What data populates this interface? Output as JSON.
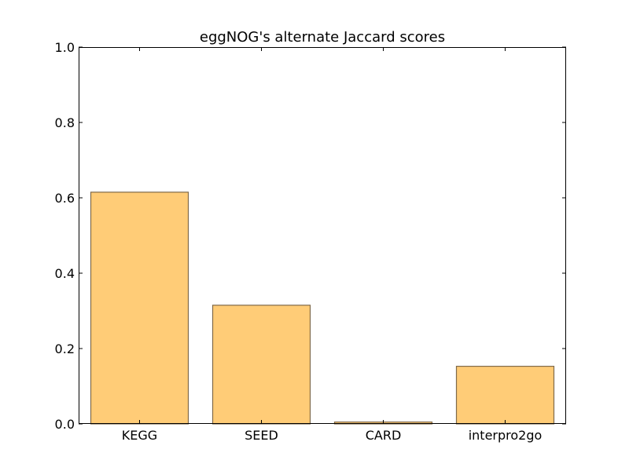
{
  "chart_data": {
    "type": "bar",
    "title": "eggNOG's alternate Jaccard scores",
    "xlabel": "",
    "ylabel": "",
    "categories": [
      "KEGG",
      "SEED",
      "CARD",
      "interpro2go"
    ],
    "values": [
      0.615,
      0.315,
      0.005,
      0.153
    ],
    "ylim": [
      0,
      1.0
    ],
    "yticks": [
      0.0,
      0.2,
      0.4,
      0.6,
      0.8,
      1.0
    ],
    "ytick_labels": [
      "0.0",
      "0.2",
      "0.4",
      "0.6",
      "0.8",
      "1.0"
    ],
    "grid": false,
    "legend": "none",
    "bar_color": "#ffcc77",
    "bar_edge_color": "#806a4a"
  }
}
